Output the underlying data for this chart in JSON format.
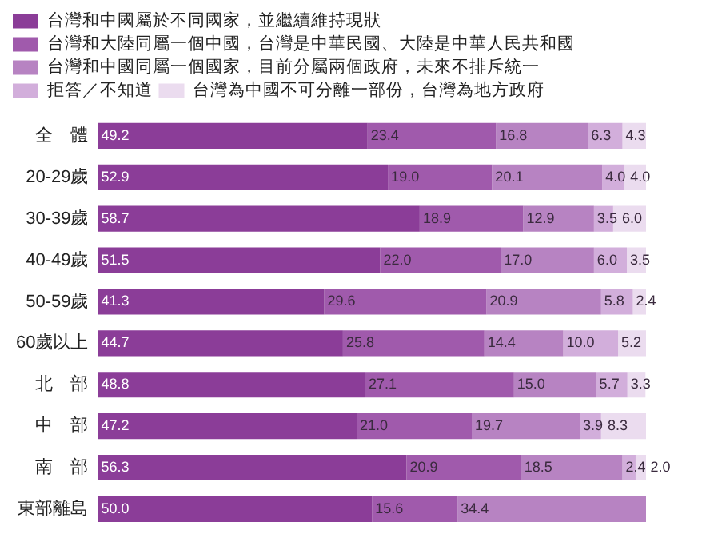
{
  "chart_data": {
    "type": "bar",
    "orientation": "horizontal",
    "stacked": true,
    "grid": false,
    "legend": "top left",
    "tick_labels": "y",
    "xlim": [
      0,
      100
    ],
    "categories": [
      "全　體",
      "20-29歲",
      "30-39歲",
      "40-49歲",
      "50-59歲",
      "60歲以上",
      "北　部",
      "中　部",
      "南　部",
      "東部離島"
    ],
    "series": [
      {
        "name": "台灣和中國屬於不同國家，並繼續維持現狀",
        "color": "#8b3d98",
        "values": [
          49.2,
          52.9,
          58.7,
          51.5,
          41.3,
          44.7,
          48.8,
          47.2,
          56.3,
          50.0
        ],
        "value_labels": [
          "49.2",
          "52.9",
          "58.7",
          "51.5",
          "41.3",
          "44.7",
          "48.8",
          "47.2",
          "56.3",
          "50.0"
        ]
      },
      {
        "name": "台灣和大陸同屬一個中國，台灣是中華民國、大陸是中華人民共和國",
        "color": "#a05aac",
        "values": [
          23.4,
          19.0,
          18.9,
          22.0,
          29.6,
          25.8,
          27.1,
          21.0,
          20.9,
          15.6
        ],
        "value_labels": [
          "23.4",
          "19.0",
          "18.9",
          "22.0",
          "29.6",
          "25.8",
          "27.1",
          "21.0",
          "20.9",
          "15.6"
        ]
      },
      {
        "name": "台灣和中國同屬一個國家，目前分屬兩個政府，未來不排斥統一",
        "color": "#b783c2",
        "values": [
          16.8,
          20.1,
          12.9,
          17.0,
          20.9,
          14.4,
          15.0,
          19.7,
          18.5,
          34.4
        ],
        "value_labels": [
          "16.8",
          "20.1",
          "12.9",
          "17.0",
          "20.9",
          "14.4",
          "15.0",
          "19.7",
          "18.5",
          "34.4"
        ]
      },
      {
        "name": "拒答／不知道",
        "color": "#d2aedb",
        "values": [
          6.3,
          4.0,
          3.5,
          6.0,
          5.8,
          10.0,
          5.7,
          3.9,
          2.4,
          null
        ],
        "value_labels": [
          "6.3",
          "4.0",
          "3.5",
          "6.0",
          "5.8",
          "10.0",
          "5.7",
          "3.9",
          "2.4",
          null
        ]
      },
      {
        "name": "台灣為中國不可分離一部份，台灣為地方政府",
        "color": "#ebdcef",
        "values": [
          4.3,
          4.0,
          6.0,
          3.5,
          2.4,
          5.2,
          3.3,
          8.3,
          2.0,
          null
        ],
        "value_labels": [
          "4.3",
          "4.0",
          "6.0",
          "3.5",
          "2.4",
          "5.2",
          "3.3",
          "8.3",
          "2.0",
          null
        ]
      }
    ]
  }
}
